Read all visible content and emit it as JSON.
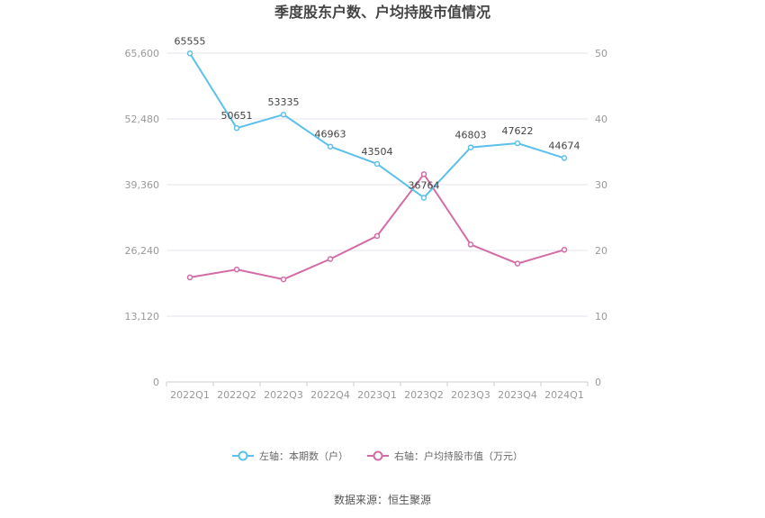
{
  "chart_data": {
    "type": "line",
    "title": "季度股东户数、户均持股市值情况",
    "categories": [
      "2022Q1",
      "2022Q2",
      "2022Q3",
      "2022Q4",
      "2023Q1",
      "2023Q2",
      "2023Q3",
      "2023Q4",
      "2024Q1"
    ],
    "left_axis": {
      "min": 0,
      "max": 65600,
      "ticks": [
        "0",
        "13,120",
        "26,240",
        "39,360",
        "52,480",
        "65,600"
      ]
    },
    "right_axis": {
      "min": 0,
      "max": 50,
      "ticks": [
        "0",
        "10",
        "20",
        "30",
        "40",
        "50"
      ]
    },
    "series": [
      {
        "name": "左轴：本期数（户）",
        "axis": "left",
        "color": "#5bc0eb",
        "values": [
          65555,
          50651,
          53335,
          46963,
          43504,
          36764,
          46803,
          47622,
          44674
        ],
        "labels": [
          "65555",
          "50651",
          "53335",
          "46963",
          "43504",
          "36764",
          "46803",
          "47622",
          "44674"
        ]
      },
      {
        "name": "右轴：户均持股市值（万元）",
        "axis": "right",
        "color": "#d36ba6",
        "values": [
          15.9,
          17.1,
          15.6,
          18.7,
          22.2,
          31.6,
          20.9,
          18.0,
          20.1
        ]
      }
    ],
    "grid": true,
    "legend_position": "bottom"
  },
  "source": "数据来源：恒生聚源"
}
